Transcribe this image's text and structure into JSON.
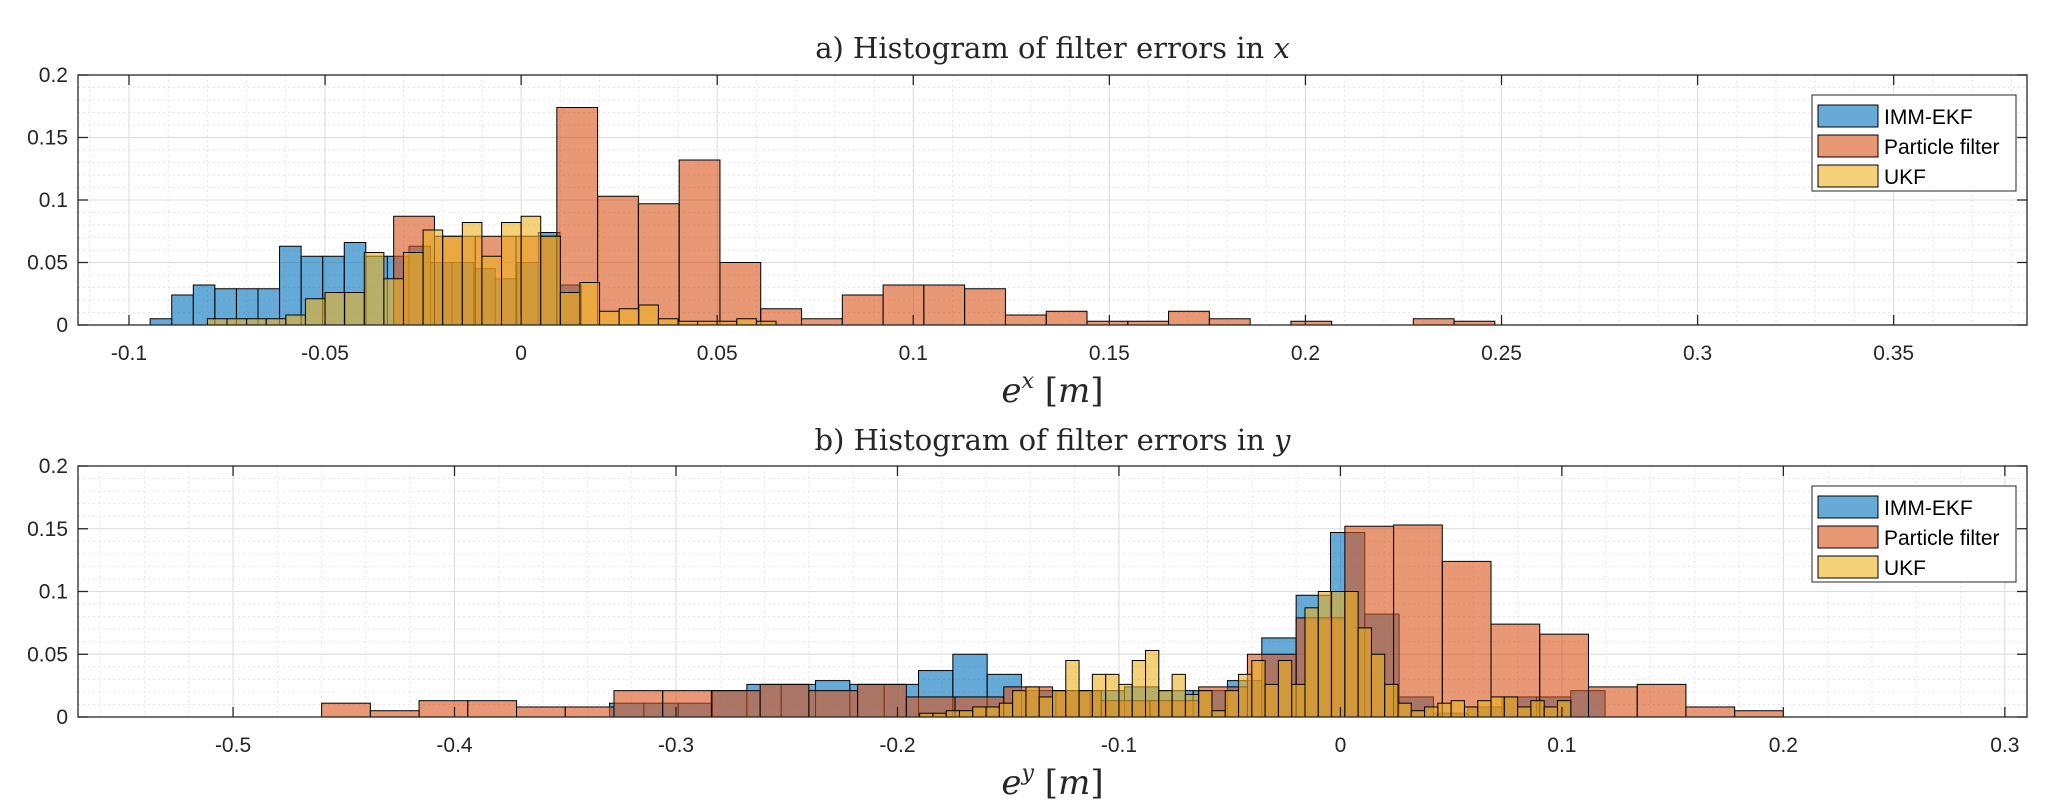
{
  "chart_data": [
    {
      "type": "bar",
      "title": "a) Histogram of filter errors in x",
      "title_prefix": "a) Histogram of filter errors in ",
      "title_var": "x",
      "xlabel_base": "e",
      "xlabel_sup": "x",
      "xlabel_unit": "[m]",
      "xlim": [
        -0.113,
        0.384
      ],
      "ylim": [
        0,
        0.2
      ],
      "xticks": [
        -0.1,
        -0.05,
        0,
        0.05,
        0.1,
        0.15,
        0.2,
        0.25,
        0.3,
        0.35
      ],
      "xtick_labels": [
        "-0.1",
        "-0.05",
        "0",
        "0.05",
        "0.1",
        "0.15",
        "0.2",
        "0.25",
        "0.3",
        "0.35"
      ],
      "yticks": [
        0,
        0.05,
        0.1,
        0.15,
        0.2
      ],
      "ytick_labels": [
        "0",
        "0.05",
        "0.1",
        "0.15",
        "0.2"
      ],
      "grid": true,
      "legend_position": "top-right",
      "series": [
        {
          "name": "IMM-EKF",
          "color": "#0072BD",
          "bin_edges": [
            -0.0946,
            -0.0891,
            -0.0836,
            -0.0781,
            -0.0726,
            -0.0671,
            -0.0616,
            -0.0561,
            -0.0506,
            -0.0451,
            -0.0396,
            -0.0341,
            -0.0286,
            -0.0231,
            -0.0176,
            -0.0121,
            -0.0066,
            -0.0011,
            0.0044,
            0.0099,
            0.0154
          ],
          "values": [
            0.005,
            0.024,
            0.032,
            0.029,
            0.029,
            0.029,
            0.063,
            0.055,
            0.055,
            0.066,
            0.055,
            0.055,
            0.063,
            0.05,
            0.05,
            0.045,
            0.037,
            0.05,
            0.074,
            0.032
          ]
        },
        {
          "name": "Particle filter",
          "color": "#D95319",
          "bin_edges": [
            -0.0325,
            -0.0221,
            -0.0117,
            -0.0013,
            0.0091,
            0.0195,
            0.0299,
            0.0403,
            0.0507,
            0.0611,
            0.0715,
            0.0819,
            0.0923,
            0.1027,
            0.1131,
            0.1235,
            0.1339,
            0.1443,
            0.1547,
            0.1651,
            0.1755,
            0.1859,
            0.1963,
            0.2067,
            0.2171,
            0.2275,
            0.2379,
            0.2483
          ],
          "values": [
            0.087,
            0.071,
            0.071,
            0.071,
            0.174,
            0.103,
            0.097,
            0.132,
            0.05,
            0.013,
            0.005,
            0.024,
            0.032,
            0.032,
            0.029,
            0.008,
            0.011,
            0.003,
            0.003,
            0.011,
            0.005,
            0,
            0.003,
            0,
            0,
            0.005,
            0.003
          ]
        },
        {
          "name": "UKF",
          "color": "#EDB120",
          "bin_edges": [
            -0.08,
            -0.075,
            -0.07,
            -0.065,
            -0.06,
            -0.055,
            -0.05,
            -0.045,
            -0.04,
            -0.035,
            -0.03,
            -0.025,
            -0.02,
            -0.015,
            -0.01,
            -0.005,
            0,
            0.005,
            0.01,
            0.015,
            0.02,
            0.025,
            0.03,
            0.035,
            0.04,
            0.045,
            0.05,
            0.055,
            0.06,
            0.065
          ],
          "values": [
            0.005,
            0.005,
            0.005,
            0.005,
            0.008,
            0.021,
            0.026,
            0.026,
            0.058,
            0.037,
            0.058,
            0.076,
            0.071,
            0.082,
            0.055,
            0.082,
            0.087,
            0.071,
            0.026,
            0.034,
            0.011,
            0.013,
            0.016,
            0.005,
            0.003,
            0.003,
            0.003,
            0.005,
            0.003
          ]
        }
      ]
    },
    {
      "type": "bar",
      "title": "b) Histogram of filter errors in y",
      "title_prefix": "b) Histogram of filter errors in ",
      "title_var": "y",
      "xlabel_base": "e",
      "xlabel_sup": "y",
      "xlabel_unit": "[m]",
      "xlim": [
        -0.57,
        0.31
      ],
      "ylim": [
        0,
        0.2
      ],
      "xticks": [
        -0.5,
        -0.4,
        -0.3,
        -0.2,
        -0.1,
        0,
        0.1,
        0.2,
        0.3
      ],
      "xtick_labels": [
        "-0.5",
        "-0.4",
        "-0.3",
        "-0.2",
        "-0.1",
        "0",
        "0.1",
        "0.2",
        "0.3"
      ],
      "yticks": [
        0,
        0.05,
        0.1,
        0.15,
        0.2
      ],
      "ytick_labels": [
        "0",
        "0.05",
        "0.1",
        "0.15",
        "0.2"
      ],
      "grid": true,
      "legend_position": "top-right",
      "series": [
        {
          "name": "IMM-EKF",
          "color": "#0072BD",
          "bin_edges": [
            -0.33,
            -0.3145,
            -0.299,
            -0.2835,
            -0.268,
            -0.2525,
            -0.237,
            -0.2215,
            -0.206,
            -0.1905,
            -0.175,
            -0.1595,
            -0.144,
            -0.1285,
            -0.113,
            -0.0975,
            -0.082,
            -0.0665,
            -0.051,
            -0.0355,
            -0.02,
            -0.0045,
            0.011,
            0.0265,
            0.042,
            0.0575,
            0.073,
            0.0885,
            0.104,
            0.1195
          ],
          "values": [
            0.011,
            0.011,
            0.011,
            0.021,
            0.026,
            0.026,
            0.029,
            0.026,
            0.026,
            0.037,
            0.05,
            0.034,
            0.021,
            0.021,
            0.021,
            0.024,
            0.021,
            0.021,
            0.029,
            0.063,
            0.097,
            0.147,
            0.082,
            0.016,
            0.003,
            0.008,
            0.016,
            0.016,
            0.021
          ]
        },
        {
          "name": "Particle filter",
          "color": "#D95319",
          "bin_edges": [
            -0.46,
            -0.438,
            -0.416,
            -0.394,
            -0.372,
            -0.35,
            -0.328,
            -0.306,
            -0.284,
            -0.262,
            -0.24,
            -0.218,
            -0.196,
            -0.174,
            -0.152,
            -0.13,
            -0.108,
            -0.086,
            -0.064,
            -0.042,
            -0.02,
            0.002,
            0.024,
            0.046,
            0.068,
            0.09,
            0.112,
            0.134,
            0.156,
            0.178,
            0.2
          ],
          "values": [
            0.011,
            0.005,
            0.013,
            0.013,
            0.008,
            0.008,
            0.021,
            0.021,
            0.021,
            0.026,
            0.021,
            0.026,
            0.016,
            0.016,
            0.024,
            0.021,
            0.013,
            0.013,
            0.024,
            0.05,
            0.079,
            0.152,
            0.153,
            0.124,
            0.074,
            0.066,
            0.024,
            0.026,
            0.008,
            0.005
          ]
        },
        {
          "name": "UKF",
          "color": "#EDB120",
          "bin_edges": [
            -0.19,
            -0.184,
            -0.178,
            -0.172,
            -0.166,
            -0.16,
            -0.154,
            -0.148,
            -0.142,
            -0.136,
            -0.13,
            -0.124,
            -0.118,
            -0.112,
            -0.106,
            -0.1,
            -0.094,
            -0.088,
            -0.082,
            -0.076,
            -0.07,
            -0.064,
            -0.058,
            -0.052,
            -0.046,
            -0.04,
            -0.034,
            -0.028,
            -0.022,
            -0.016,
            -0.01,
            -0.004,
            0.002,
            0.008,
            0.014,
            0.02,
            0.026,
            0.032,
            0.038,
            0.044,
            0.05,
            0.056,
            0.062,
            0.068,
            0.074,
            0.08,
            0.086,
            0.092,
            0.098,
            0.104
          ],
          "values": [
            0.003,
            0.003,
            0.005,
            0.005,
            0.008,
            0.008,
            0.011,
            0.021,
            0.024,
            0.016,
            0.021,
            0.045,
            0.021,
            0.034,
            0.034,
            0.026,
            0.045,
            0.053,
            0.021,
            0.034,
            0.018,
            0.021,
            0.005,
            0.021,
            0.034,
            0.045,
            0.026,
            0.045,
            0.026,
            0.087,
            0.1,
            0.1,
            0.1,
            0.071,
            0.05,
            0.026,
            0.011,
            0.005,
            0.008,
            0.011,
            0.013,
            0.008,
            0.013,
            0.016,
            0.016,
            0.008,
            0.013,
            0.008,
            0.013
          ]
        }
      ]
    }
  ]
}
